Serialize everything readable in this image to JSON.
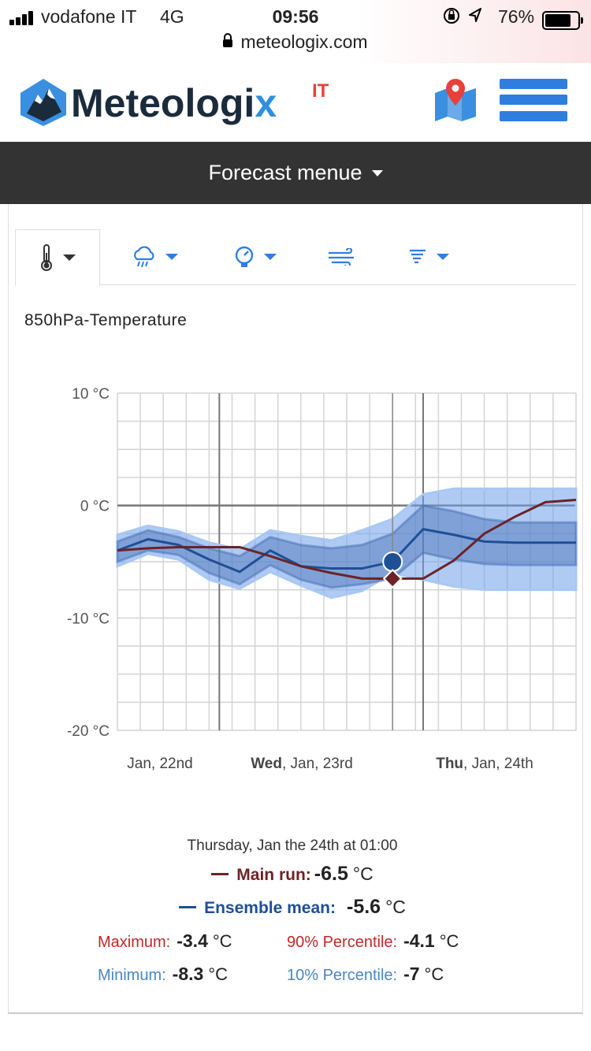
{
  "status_bar": {
    "carrier": "vodafone IT",
    "network": "4G",
    "time": "09:56",
    "battery": "76%",
    "url": "meteologix.com"
  },
  "header": {
    "logo_text_main": "Meteologi",
    "logo_text_x": "x",
    "logo_superscript": "IT",
    "icons": [
      "map-pin-icon",
      "hamburger-menu-icon"
    ],
    "accent_color": "#2f7de1"
  },
  "forecast_menu": {
    "label": "Forecast menue"
  },
  "tabs": [
    {
      "icon": "thermometer-icon",
      "active": true
    },
    {
      "icon": "rain-cloud-icon",
      "active": false
    },
    {
      "icon": "pressure-gauge-icon",
      "active": false
    },
    {
      "icon": "wind-icon",
      "active": false
    },
    {
      "icon": "tornado-icon",
      "active": false
    }
  ],
  "chart_title": "850hPa-Temperature",
  "chart_data": {
    "type": "line",
    "title": "850hPa-Temperature",
    "ylim": [
      -20,
      10
    ],
    "y_ticks": [
      "10 °C",
      "0 °C",
      "-10 °C",
      "-20 °C"
    ],
    "x_labels": [
      {
        "bold": "",
        "text": "Jan, 22nd"
      },
      {
        "bold": "Wed",
        "text": ", Jan, 23rd"
      },
      {
        "bold": "Thu",
        "text": ", Jan, 24th"
      }
    ],
    "x_hours": [
      0,
      6,
      12,
      18,
      24,
      30,
      36,
      42,
      48,
      54,
      60,
      66,
      72,
      78,
      84,
      90
    ],
    "series": [
      {
        "name": "Main run",
        "color": "#6b2326",
        "values": [
          -4.0,
          -3.8,
          -3.7,
          -3.7,
          -3.7,
          -4.5,
          -5.4,
          -6.0,
          -6.5,
          -6.5,
          -6.5,
          -4.9,
          -2.5,
          -1.0,
          0.3,
          0.5
        ]
      },
      {
        "name": "Ensemble mean",
        "color": "#1f4f96",
        "values": [
          -4.0,
          -3.0,
          -3.5,
          -4.8,
          -5.9,
          -4.0,
          -5.4,
          -5.6,
          -5.6,
          -5.0,
          -2.1,
          -2.6,
          -3.2,
          -3.3,
          -3.3,
          -3.3
        ]
      }
    ],
    "bands": {
      "percentile_10_90": {
        "upper": [
          -3.2,
          -2.2,
          -2.8,
          -3.8,
          -4.5,
          -2.8,
          -3.5,
          -3.8,
          -3.5,
          -2.5,
          0.0,
          -0.5,
          -1.2,
          -1.5,
          -1.5,
          -1.5
        ],
        "lower": [
          -5.0,
          -4.0,
          -4.4,
          -6.0,
          -7.0,
          -5.3,
          -6.6,
          -7.3,
          -7.0,
          -6.5,
          -4.2,
          -4.8,
          -5.2,
          -5.3,
          -5.3,
          -5.3
        ]
      },
      "min_max": {
        "upper": [
          -2.6,
          -1.8,
          -2.3,
          -3.3,
          -3.9,
          -2.2,
          -2.7,
          -3.1,
          -2.2,
          -1.2,
          1.0,
          1.5,
          1.5,
          1.5,
          1.5,
          1.5
        ],
        "lower": [
          -5.4,
          -4.3,
          -4.8,
          -6.6,
          -7.4,
          -5.9,
          -7.1,
          -8.2,
          -7.6,
          -6.0,
          -6.6,
          -7.2,
          -7.5,
          -7.5,
          -7.5,
          -7.5
        ]
      }
    },
    "marker_hour": 54,
    "day_boundaries_hours": [
      20,
      60
    ],
    "grid": true
  },
  "readout": {
    "time": "Thursday, Jan the 24th at 01:00",
    "main_run_label": "Main run:",
    "main_run_value": "-6.5",
    "ensemble_label": "Ensemble mean:",
    "ensemble_value": "-5.6",
    "unit": "°C",
    "maximum_label": "Maximum:",
    "maximum_value": "-3.4",
    "p90_label": "90% Percentile:",
    "p90_value": "-4.1",
    "minimum_label": "Minimum:",
    "minimum_value": "-8.3",
    "p10_label": "10% Percentile:",
    "p10_value": "-7"
  }
}
